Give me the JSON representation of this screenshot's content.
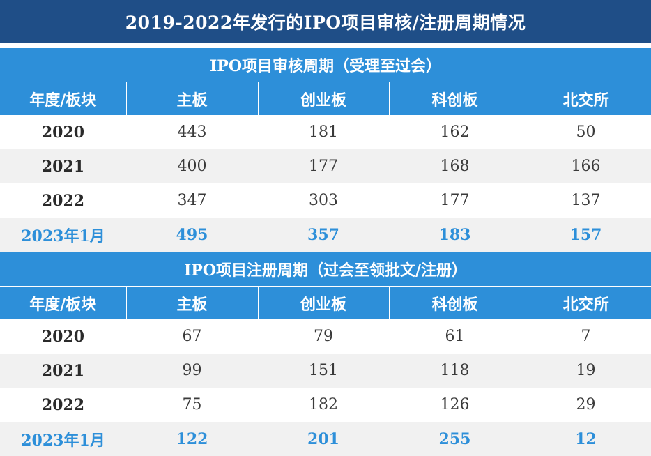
{
  "title": "2019-2022年发行的IPO项目审核/注册周期情况",
  "colors": {
    "title_bg": "#1f4e87",
    "header_bg": "#2d8fd9",
    "highlight_text": "#2d8fd9",
    "alt_row_bg": "#f1f1f1"
  },
  "review": {
    "section_title": "IPO项目审核周期（受理至过会）",
    "headers": [
      "年度/板块",
      "主板",
      "创业板",
      "科创板",
      "北交所"
    ],
    "rows": [
      [
        "2020",
        "443",
        "181",
        "162",
        "50"
      ],
      [
        "2021",
        "400",
        "177",
        "168",
        "166"
      ],
      [
        "2022",
        "347",
        "303",
        "177",
        "137"
      ],
      [
        "2023年1月",
        "495",
        "357",
        "183",
        "157"
      ]
    ]
  },
  "registration": {
    "section_title": "IPO项目注册周期（过会至领批文/注册）",
    "headers": [
      "年度/板块",
      "主板",
      "创业板",
      "科创板",
      "北交所"
    ],
    "rows": [
      [
        "2020",
        "67",
        "79",
        "61",
        "7"
      ],
      [
        "2021",
        "99",
        "151",
        "118",
        "19"
      ],
      [
        "2022",
        "75",
        "182",
        "126",
        "29"
      ],
      [
        "2023年1月",
        "122",
        "201",
        "255",
        "12"
      ]
    ]
  }
}
